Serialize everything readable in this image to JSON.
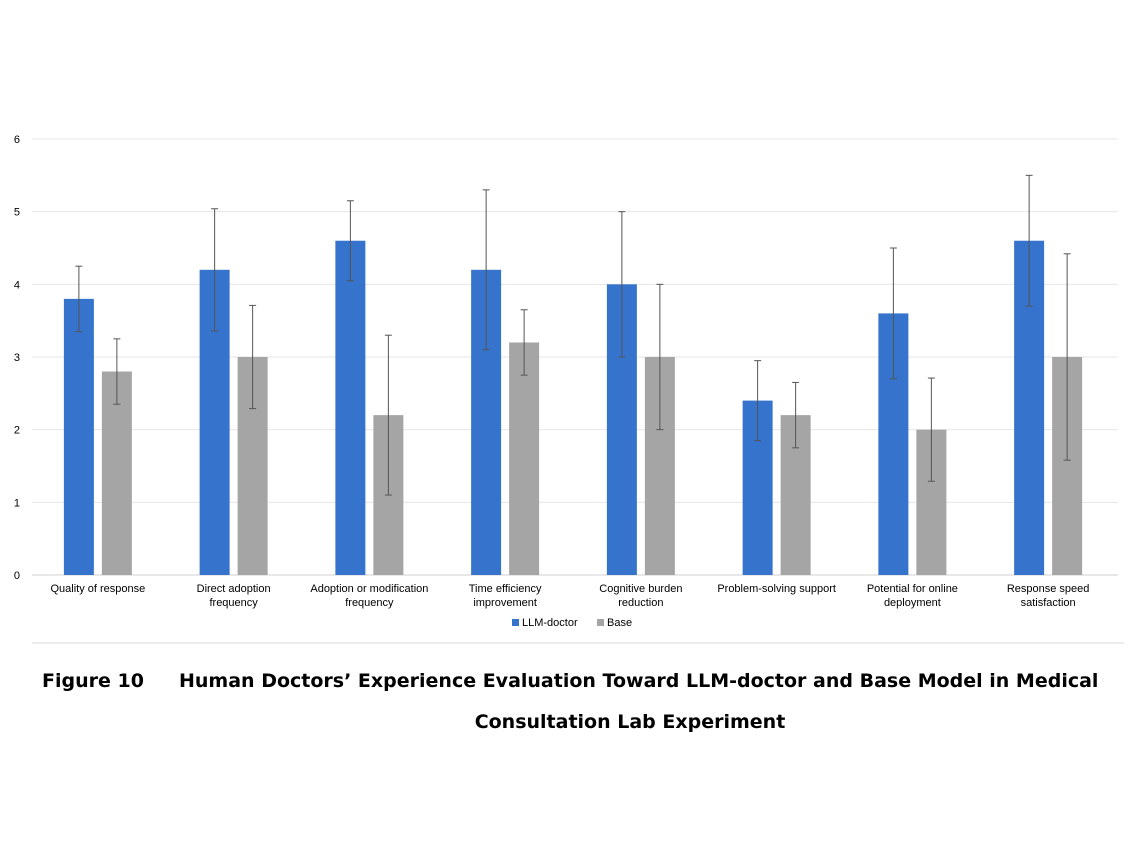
{
  "chart_data": {
    "type": "bar",
    "categories": [
      [
        "Quality of response"
      ],
      [
        "Direct adoption",
        "frequency"
      ],
      [
        "Adoption or modification",
        "frequency"
      ],
      [
        "Time efficiency",
        "improvement"
      ],
      [
        "Cognitive burden",
        "reduction"
      ],
      [
        "Problem-solving support"
      ],
      [
        "Potential for online",
        "deployment"
      ],
      [
        "Response speed",
        "satisfaction"
      ]
    ],
    "series": [
      {
        "name": "LLM-doctor",
        "color": "#3573CC",
        "values": [
          3.8,
          4.2,
          4.6,
          4.2,
          4.0,
          2.4,
          3.6,
          4.6
        ],
        "error": [
          0.45,
          0.84,
          0.55,
          1.1,
          1.0,
          0.55,
          0.9,
          0.9
        ]
      },
      {
        "name": "Base",
        "color": "#A5A5A5",
        "values": [
          2.8,
          3.0,
          2.2,
          3.2,
          3.0,
          2.2,
          2.0,
          3.0
        ],
        "error": [
          0.45,
          0.71,
          1.1,
          0.45,
          1.0,
          0.45,
          0.71,
          1.42
        ]
      }
    ],
    "ylim": [
      0,
      6
    ],
    "yticks": [
      "0",
      "1",
      "2",
      "3",
      "4",
      "5",
      "6"
    ],
    "grid": true,
    "legend_position": "bottom"
  },
  "caption": {
    "figure_number": "Figure 10",
    "line1": "Human Doctors’ Experience Evaluation Toward LLM-doctor and Base Model in Medical",
    "line2": "Consultation Lab Experiment"
  }
}
